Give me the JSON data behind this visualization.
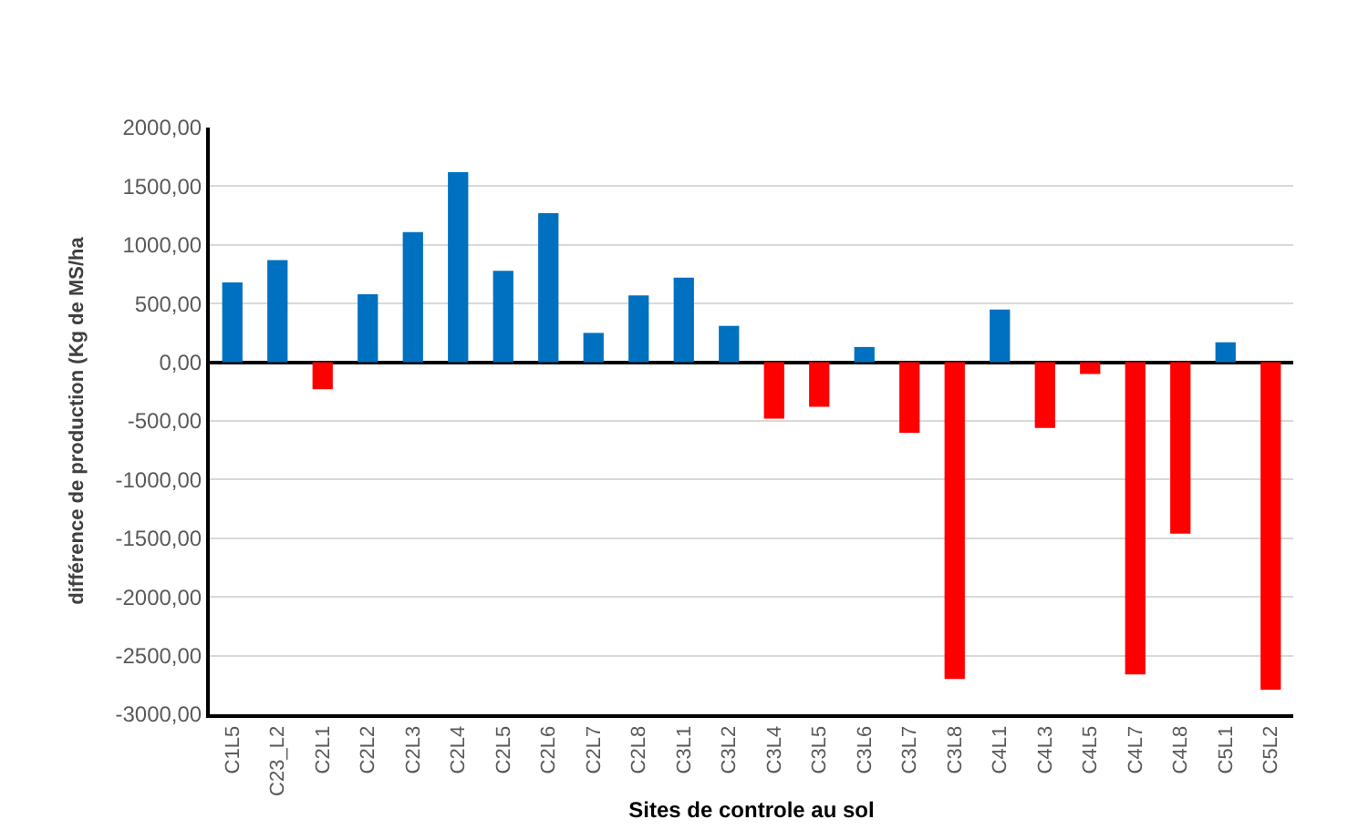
{
  "chart_data": {
    "type": "bar",
    "xlabel": "Sites de controle au sol",
    "ylabel": "différence de production (Kg de MS/ha",
    "categories": [
      "C1L5",
      "C23_L2",
      "C2L1",
      "C2L2",
      "C2L3",
      "C2L4",
      "C2L5",
      "C2L6",
      "C2L7",
      "C2L8",
      "C3L1",
      "C3L2",
      "C3L4",
      "C3L5",
      "C3L6",
      "C3L7",
      "C3L8",
      "C4L1",
      "C4L3",
      "C4L5",
      "C4L7",
      "C4L8",
      "C5L1",
      "C5L2"
    ],
    "values": [
      680,
      870,
      -230,
      580,
      1110,
      1620,
      780,
      1270,
      250,
      570,
      720,
      310,
      -480,
      -380,
      130,
      -600,
      -2700,
      450,
      -560,
      -100,
      -2660,
      -1460,
      170,
      -2790
    ],
    "colors": [
      "#0070c0",
      "#0070c0",
      "#ff0000",
      "#0070c0",
      "#0070c0",
      "#0070c0",
      "#0070c0",
      "#0070c0",
      "#0070c0",
      "#0070c0",
      "#0070c0",
      "#0070c0",
      "#ff0000",
      "#ff0000",
      "#0070c0",
      "#ff0000",
      "#ff0000",
      "#0070c0",
      "#ff0000",
      "#ff0000",
      "#ff0000",
      "#ff0000",
      "#0070c0",
      "#ff0000"
    ],
    "ylim": [
      -3000,
      2000
    ],
    "yticks": [
      {
        "value": -3000,
        "label": "-3000,00"
      },
      {
        "value": -2500,
        "label": "-2500,00"
      },
      {
        "value": -2000,
        "label": "-2000,00"
      },
      {
        "value": -1500,
        "label": "-1500,00"
      },
      {
        "value": -1000,
        "label": "-1000,00"
      },
      {
        "value": -500,
        "label": "-500,00"
      },
      {
        "value": 0,
        "label": "0,00"
      },
      {
        "value": 500,
        "label": "500,00"
      },
      {
        "value": 1000,
        "label": "1000,00"
      },
      {
        "value": 1500,
        "label": "1500,00"
      },
      {
        "value": 2000,
        "label": "2000,00"
      }
    ],
    "grid": "y"
  }
}
